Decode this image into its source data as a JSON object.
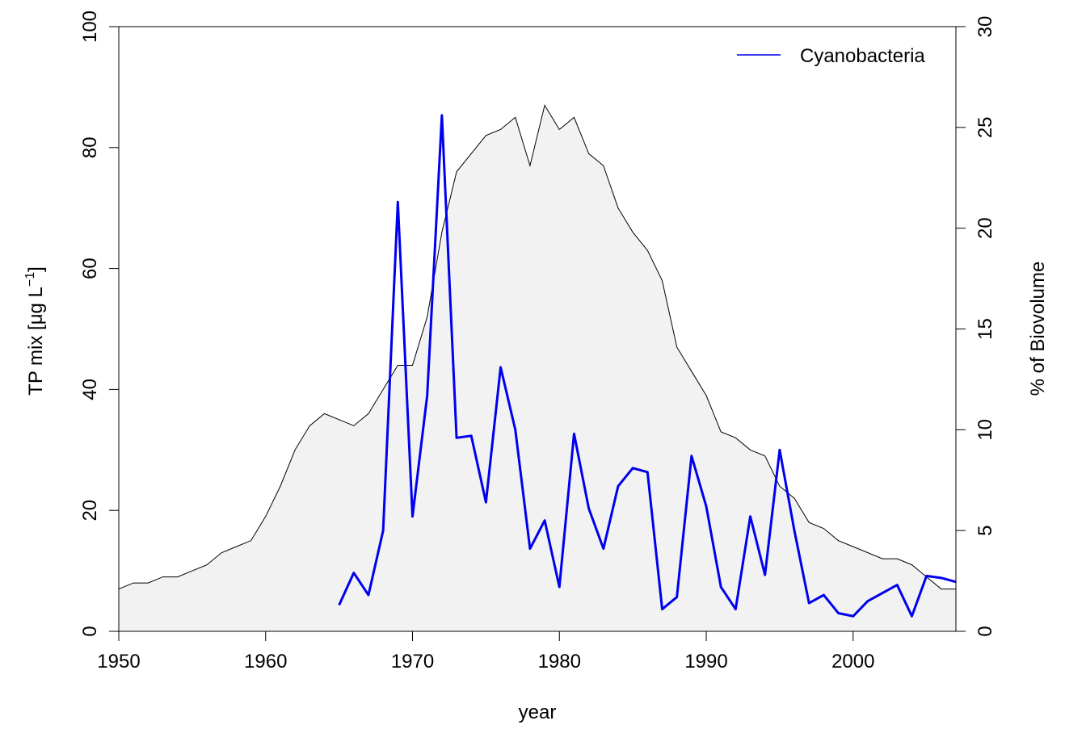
{
  "chart_data": {
    "type": "area",
    "xlabel": "year",
    "ylabel_left": "TP mix [μg L",
    "ylabel_left_superscript": "−1",
    "ylabel_left_close": "]",
    "ylabel_right": "% of Biovolume",
    "xlim": [
      1950,
      2007
    ],
    "ylim_left": [
      0,
      100
    ],
    "ylim_right": [
      0,
      30
    ],
    "x_ticks": [
      "1950",
      "1960",
      "1970",
      "1980",
      "1990",
      "2000"
    ],
    "y_ticks_left": [
      "0",
      "20",
      "40",
      "60",
      "80",
      "100"
    ],
    "y_ticks_right": [
      "0",
      "5",
      "10",
      "15",
      "20",
      "25",
      "30"
    ],
    "legend_position": "top-right",
    "grid": false,
    "series": [
      {
        "axis": "left",
        "style": "shaded area",
        "fill_color": "#f2f2f2",
        "line_color": "#000000",
        "x": [
          1950,
          1951,
          1952,
          1953,
          1954,
          1955,
          1956,
          1957,
          1958,
          1959,
          1960,
          1961,
          1962,
          1963,
          1964,
          1965,
          1966,
          1967,
          1968,
          1969,
          1970,
          1971,
          1972,
          1973,
          1974,
          1975,
          1976,
          1977,
          1978,
          1979,
          1980,
          1981,
          1982,
          1983,
          1984,
          1985,
          1986,
          1987,
          1988,
          1989,
          1990,
          1991,
          1992,
          1993,
          1994,
          1995,
          1996,
          1997,
          1998,
          1999,
          2000,
          2001,
          2002,
          2003,
          2004,
          2005,
          2006,
          2007
        ],
        "values": [
          7,
          8,
          8,
          9,
          9,
          10,
          11,
          13,
          14,
          15,
          19,
          24,
          30,
          34,
          36,
          35,
          34,
          36,
          40,
          44,
          44,
          52,
          66,
          76,
          79,
          82,
          83,
          85,
          77,
          87,
          83,
          85,
          79,
          77,
          70,
          66,
          63,
          58,
          47,
          43,
          39,
          33,
          32,
          30,
          29,
          24,
          22,
          18,
          17,
          15,
          14,
          13,
          12,
          12,
          11,
          9,
          7,
          7
        ]
      },
      {
        "name": "Cyanobacteria",
        "axis": "right",
        "style": "line",
        "color": "#0000ee",
        "x": [
          1965,
          1966,
          1967,
          1968,
          1969,
          1970,
          1971,
          1972,
          1973,
          1974,
          1975,
          1976,
          1977,
          1978,
          1979,
          1980,
          1981,
          1982,
          1983,
          1984,
          1985,
          1986,
          1987,
          1988,
          1989,
          1990,
          1991,
          1992,
          1993,
          1994,
          1995,
          1996,
          1997,
          1998,
          1999,
          2000,
          2001,
          2002,
          2003,
          2004,
          2005,
          2006,
          2007
        ],
        "values": [
          1.3,
          2.9,
          1.8,
          5.0,
          21.3,
          5.7,
          11.7,
          25.6,
          9.6,
          9.7,
          6.4,
          13.1,
          10.0,
          4.1,
          5.5,
          2.2,
          9.8,
          6.1,
          4.1,
          7.2,
          8.1,
          7.9,
          1.1,
          1.7,
          8.7,
          6.2,
          2.2,
          1.1,
          5.7,
          2.8,
          9.0,
          5.0,
          1.4,
          1.8,
          0.9,
          0.75,
          1.5,
          1.9,
          2.3,
          0.75,
          2.75,
          2.65,
          2.45
        ]
      }
    ]
  }
}
